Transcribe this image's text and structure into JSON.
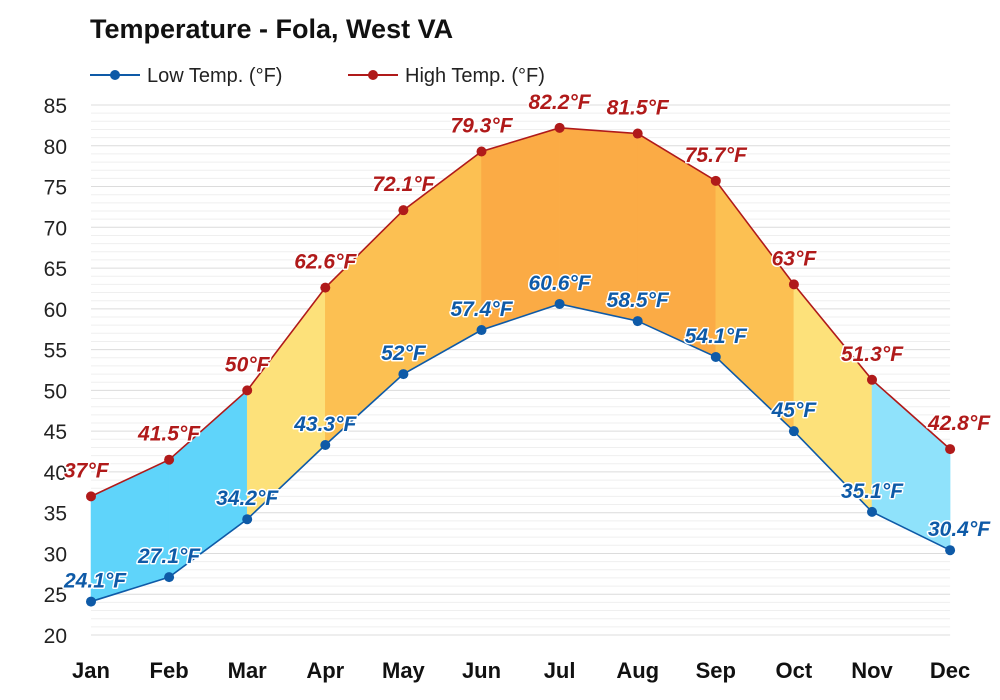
{
  "chart_data": {
    "type": "line",
    "title": "Temperature - Fola, West VA",
    "categories": [
      "Jan",
      "Feb",
      "Mar",
      "Apr",
      "May",
      "Jun",
      "Jul",
      "Aug",
      "Sep",
      "Oct",
      "Nov",
      "Dec"
    ],
    "series": [
      {
        "name": "Low Temp. (°F)",
        "color": "#0e5aa7",
        "values": [
          24.1,
          27.1,
          34.2,
          43.3,
          52,
          57.4,
          60.6,
          58.5,
          54.1,
          45,
          35.1,
          30.4
        ],
        "labels": [
          "24.1°F",
          "27.1°F",
          "34.2°F",
          "43.3°F",
          "52°F",
          "57.4°F",
          "60.6°F",
          "58.5°F",
          "54.1°F",
          "45°F",
          "35.1°F",
          "30.4°F"
        ]
      },
      {
        "name": "High Temp. (°F)",
        "color": "#b01a1a",
        "values": [
          37,
          41.5,
          50,
          62.6,
          72.1,
          79.3,
          82.2,
          81.5,
          75.7,
          63,
          51.3,
          42.8
        ],
        "labels": [
          "37°F",
          "41.5°F",
          "50°F",
          "62.6°F",
          "72.1°F",
          "79.3°F",
          "82.2°F",
          "81.5°F",
          "75.7°F",
          "63°F",
          "51.3°F",
          "42.8°F"
        ]
      }
    ],
    "y_ticks": [
      "20",
      "25",
      "30",
      "35",
      "40",
      "45",
      "50",
      "55",
      "60",
      "65",
      "70",
      "75",
      "80",
      "85"
    ],
    "ylim": [
      20,
      85
    ],
    "grid": true,
    "legend_position": "top-left",
    "band_colors": {
      "cold": "#5fd4fa",
      "cool": "#8fe2fb",
      "mild": "#fde17a",
      "warm": "#fcc052",
      "hot": "#fbab45"
    }
  }
}
